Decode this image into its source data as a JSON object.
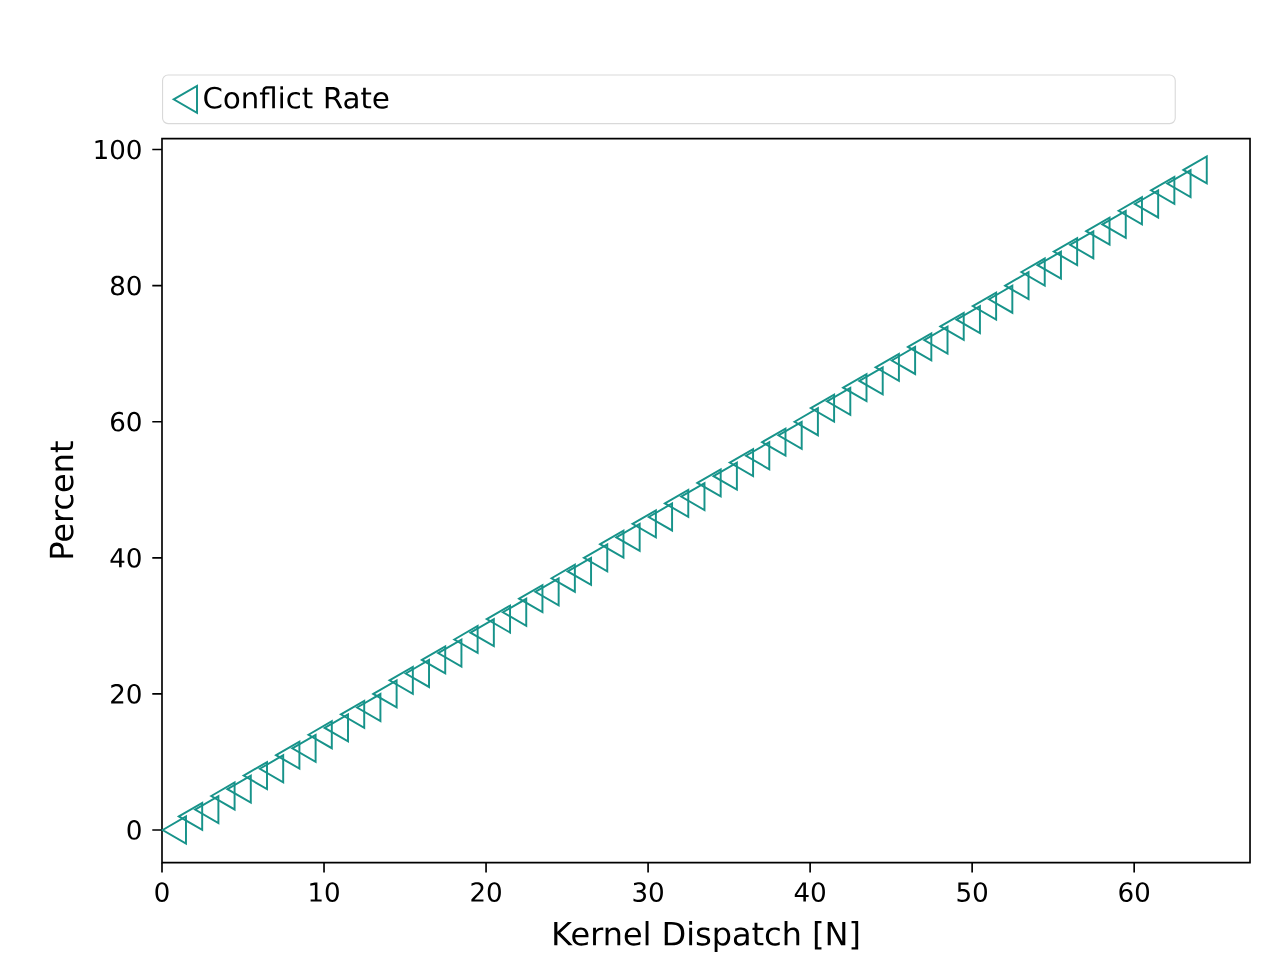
{
  "chart_data": {
    "type": "scatter",
    "xlabel": "Kernel Dispatch [N]",
    "ylabel": "Percent",
    "x": [
      1,
      2,
      3,
      4,
      5,
      6,
      7,
      8,
      9,
      10,
      11,
      12,
      13,
      14,
      15,
      16,
      17,
      18,
      19,
      20,
      21,
      22,
      23,
      24,
      25,
      26,
      27,
      28,
      29,
      30,
      31,
      32,
      33,
      34,
      35,
      36,
      37,
      38,
      39,
      40,
      41,
      42,
      43,
      44,
      45,
      46,
      47,
      48,
      49,
      50,
      51,
      52,
      53,
      54,
      55,
      56,
      57,
      58,
      59,
      60,
      61,
      62,
      63,
      64
    ],
    "series": [
      {
        "name": "Conflict Rate",
        "color": "#17938a",
        "values": [
          0,
          2,
          3,
          5,
          6,
          8,
          9,
          11,
          12,
          14,
          15,
          17,
          18,
          20,
          22,
          23,
          25,
          26,
          28,
          29,
          31,
          32,
          34,
          35,
          37,
          38,
          40,
          42,
          43,
          45,
          46,
          48,
          49,
          51,
          52,
          54,
          55,
          57,
          58,
          60,
          62,
          63,
          65,
          66,
          68,
          69,
          71,
          72,
          74,
          75,
          77,
          78,
          80,
          82,
          83,
          85,
          86,
          88,
          89,
          91,
          92,
          94,
          95,
          97
        ]
      }
    ],
    "xlim": [
      0,
      67.15
    ],
    "ylim": [
      -4.8,
      101.6
    ],
    "xticks": [
      0,
      10,
      20,
      30,
      40,
      50,
      60
    ],
    "yticks": [
      0,
      20,
      40,
      60,
      80,
      100
    ],
    "marker": "triangle_left",
    "legend": "top"
  }
}
